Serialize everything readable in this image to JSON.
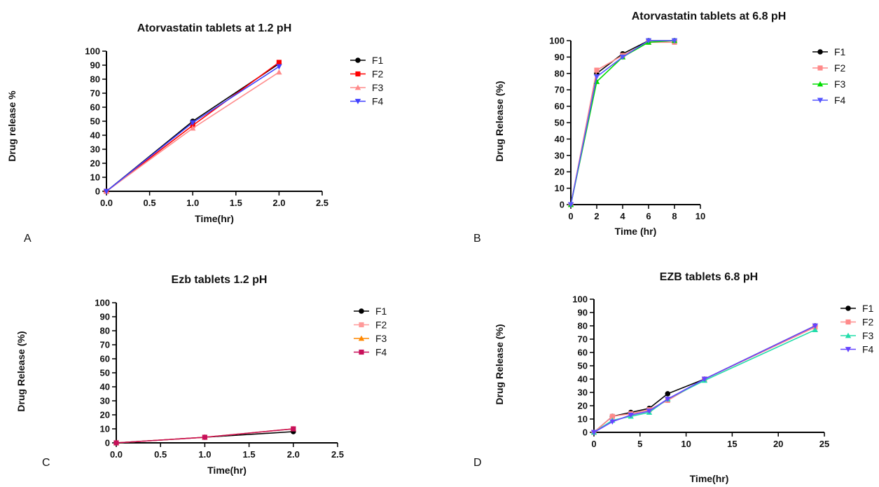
{
  "chart_data": [
    {
      "panel_label": "A",
      "type": "line",
      "title": "Atorvastatin tablets at 1.2 pH",
      "xlabel": "Time(hr)",
      "ylabel": "Drug release %",
      "xlim": [
        0,
        2.5
      ],
      "ylim": [
        0,
        100
      ],
      "x_ticks": [
        "0.0",
        "0.5",
        "1.0",
        "1.5",
        "2.0",
        "2.5"
      ],
      "y_ticks": [
        "0",
        "10",
        "20",
        "30",
        "40",
        "50",
        "60",
        "70",
        "80",
        "90",
        "100"
      ],
      "grid": false,
      "legend_position": "right",
      "series": [
        {
          "name": "F1",
          "color": "#000000",
          "marker": "circle",
          "x": [
            0,
            1,
            2
          ],
          "y": [
            0,
            50,
            91
          ]
        },
        {
          "name": "F2",
          "color": "#ff0000",
          "marker": "square",
          "x": [
            0,
            1,
            2
          ],
          "y": [
            0,
            47,
            92
          ]
        },
        {
          "name": "F3",
          "color": "#ff8a8a",
          "marker": "triangle-up",
          "x": [
            0,
            1,
            2
          ],
          "y": [
            0,
            45,
            85
          ]
        },
        {
          "name": "F4",
          "color": "#4040ff",
          "marker": "triangle-down",
          "x": [
            0,
            1,
            2
          ],
          "y": [
            0,
            49,
            89
          ]
        }
      ]
    },
    {
      "panel_label": "B",
      "type": "line",
      "title": "Atorvastatin tablets at 6.8 pH",
      "xlabel": "Time (hr)",
      "ylabel": "Drug Release (%)",
      "xlim": [
        0,
        10
      ],
      "ylim": [
        0,
        100
      ],
      "x_ticks": [
        "0",
        "2",
        "4",
        "6",
        "8",
        "10"
      ],
      "y_ticks": [
        "0",
        "10",
        "20",
        "30",
        "40",
        "50",
        "60",
        "70",
        "80",
        "90",
        "100"
      ],
      "grid": false,
      "legend_position": "right",
      "series": [
        {
          "name": "F1",
          "color": "#000000",
          "marker": "circle",
          "x": [
            0,
            2,
            4,
            6,
            8
          ],
          "y": [
            0,
            80,
            92,
            100,
            100
          ]
        },
        {
          "name": "F2",
          "color": "#ff8a8a",
          "marker": "square",
          "x": [
            0,
            2,
            4,
            6,
            8
          ],
          "y": [
            0,
            82,
            91,
            99,
            99
          ]
        },
        {
          "name": "F3",
          "color": "#00dd00",
          "marker": "triangle-up",
          "x": [
            0,
            2,
            4,
            6,
            8
          ],
          "y": [
            0,
            75,
            90,
            99,
            100
          ]
        },
        {
          "name": "F4",
          "color": "#5555ff",
          "marker": "triangle-down",
          "x": [
            0,
            2,
            4,
            6,
            8
          ],
          "y": [
            0,
            78,
            90,
            100,
            100
          ]
        }
      ]
    },
    {
      "panel_label": "C",
      "type": "line",
      "title": "Ezb tablets 1.2 pH",
      "xlabel": "Time(hr)",
      "ylabel": "Drug Release (%)",
      "xlim": [
        0,
        2.5
      ],
      "ylim": [
        0,
        100
      ],
      "x_ticks": [
        "0.0",
        "0.5",
        "1.0",
        "1.5",
        "2.0",
        "2.5"
      ],
      "y_ticks": [
        "0",
        "10",
        "20",
        "30",
        "40",
        "50",
        "60",
        "70",
        "80",
        "90",
        "100"
      ],
      "grid": false,
      "legend_position": "right",
      "series": [
        {
          "name": "F1",
          "color": "#000000",
          "marker": "circle",
          "x": [
            0,
            1,
            2
          ],
          "y": [
            0,
            4,
            8
          ]
        },
        {
          "name": "F2",
          "color": "#ff9a9a",
          "marker": "square",
          "x": [
            0,
            1,
            2
          ],
          "y": [
            0,
            4,
            10
          ]
        },
        {
          "name": "F3",
          "color": "#ff8800",
          "marker": "triangle-up",
          "x": [
            0,
            1,
            2
          ],
          "y": [
            0,
            4,
            10
          ]
        },
        {
          "name": "F4",
          "color": "#c8105a",
          "marker": "square",
          "x": [
            0,
            1,
            2
          ],
          "y": [
            0,
            4,
            10
          ]
        }
      ]
    },
    {
      "panel_label": "D",
      "type": "line",
      "title": "EZB tablets 6.8 pH",
      "xlabel": "Time(hr)",
      "ylabel": "Drug Release (%)",
      "xlim": [
        0,
        25
      ],
      "ylim": [
        0,
        100
      ],
      "x_ticks": [
        "0",
        "5",
        "10",
        "15",
        "20",
        "25"
      ],
      "y_ticks": [
        "0",
        "10",
        "20",
        "30",
        "40",
        "50",
        "60",
        "70",
        "80",
        "90",
        "100"
      ],
      "grid": false,
      "legend_position": "right",
      "series": [
        {
          "name": "F1",
          "color": "#000000",
          "marker": "circle",
          "x": [
            0,
            2,
            4,
            6,
            8,
            12,
            24
          ],
          "y": [
            0,
            12,
            15,
            18,
            29,
            40,
            80
          ]
        },
        {
          "name": "F2",
          "color": "#ff8a8a",
          "marker": "square",
          "x": [
            0,
            2,
            4,
            6,
            8,
            12,
            24
          ],
          "y": [
            0,
            12,
            14,
            17,
            24,
            40,
            79
          ]
        },
        {
          "name": "F3",
          "color": "#22ddaa",
          "marker": "triangle-up",
          "x": [
            0,
            2,
            4,
            6,
            8,
            12,
            24
          ],
          "y": [
            0,
            9,
            12,
            15,
            25,
            39,
            77
          ]
        },
        {
          "name": "F4",
          "color": "#6644ff",
          "marker": "triangle-down",
          "x": [
            0,
            2,
            4,
            6,
            8,
            12,
            24
          ],
          "y": [
            0,
            8,
            13,
            16,
            25,
            40,
            80
          ]
        }
      ]
    }
  ]
}
